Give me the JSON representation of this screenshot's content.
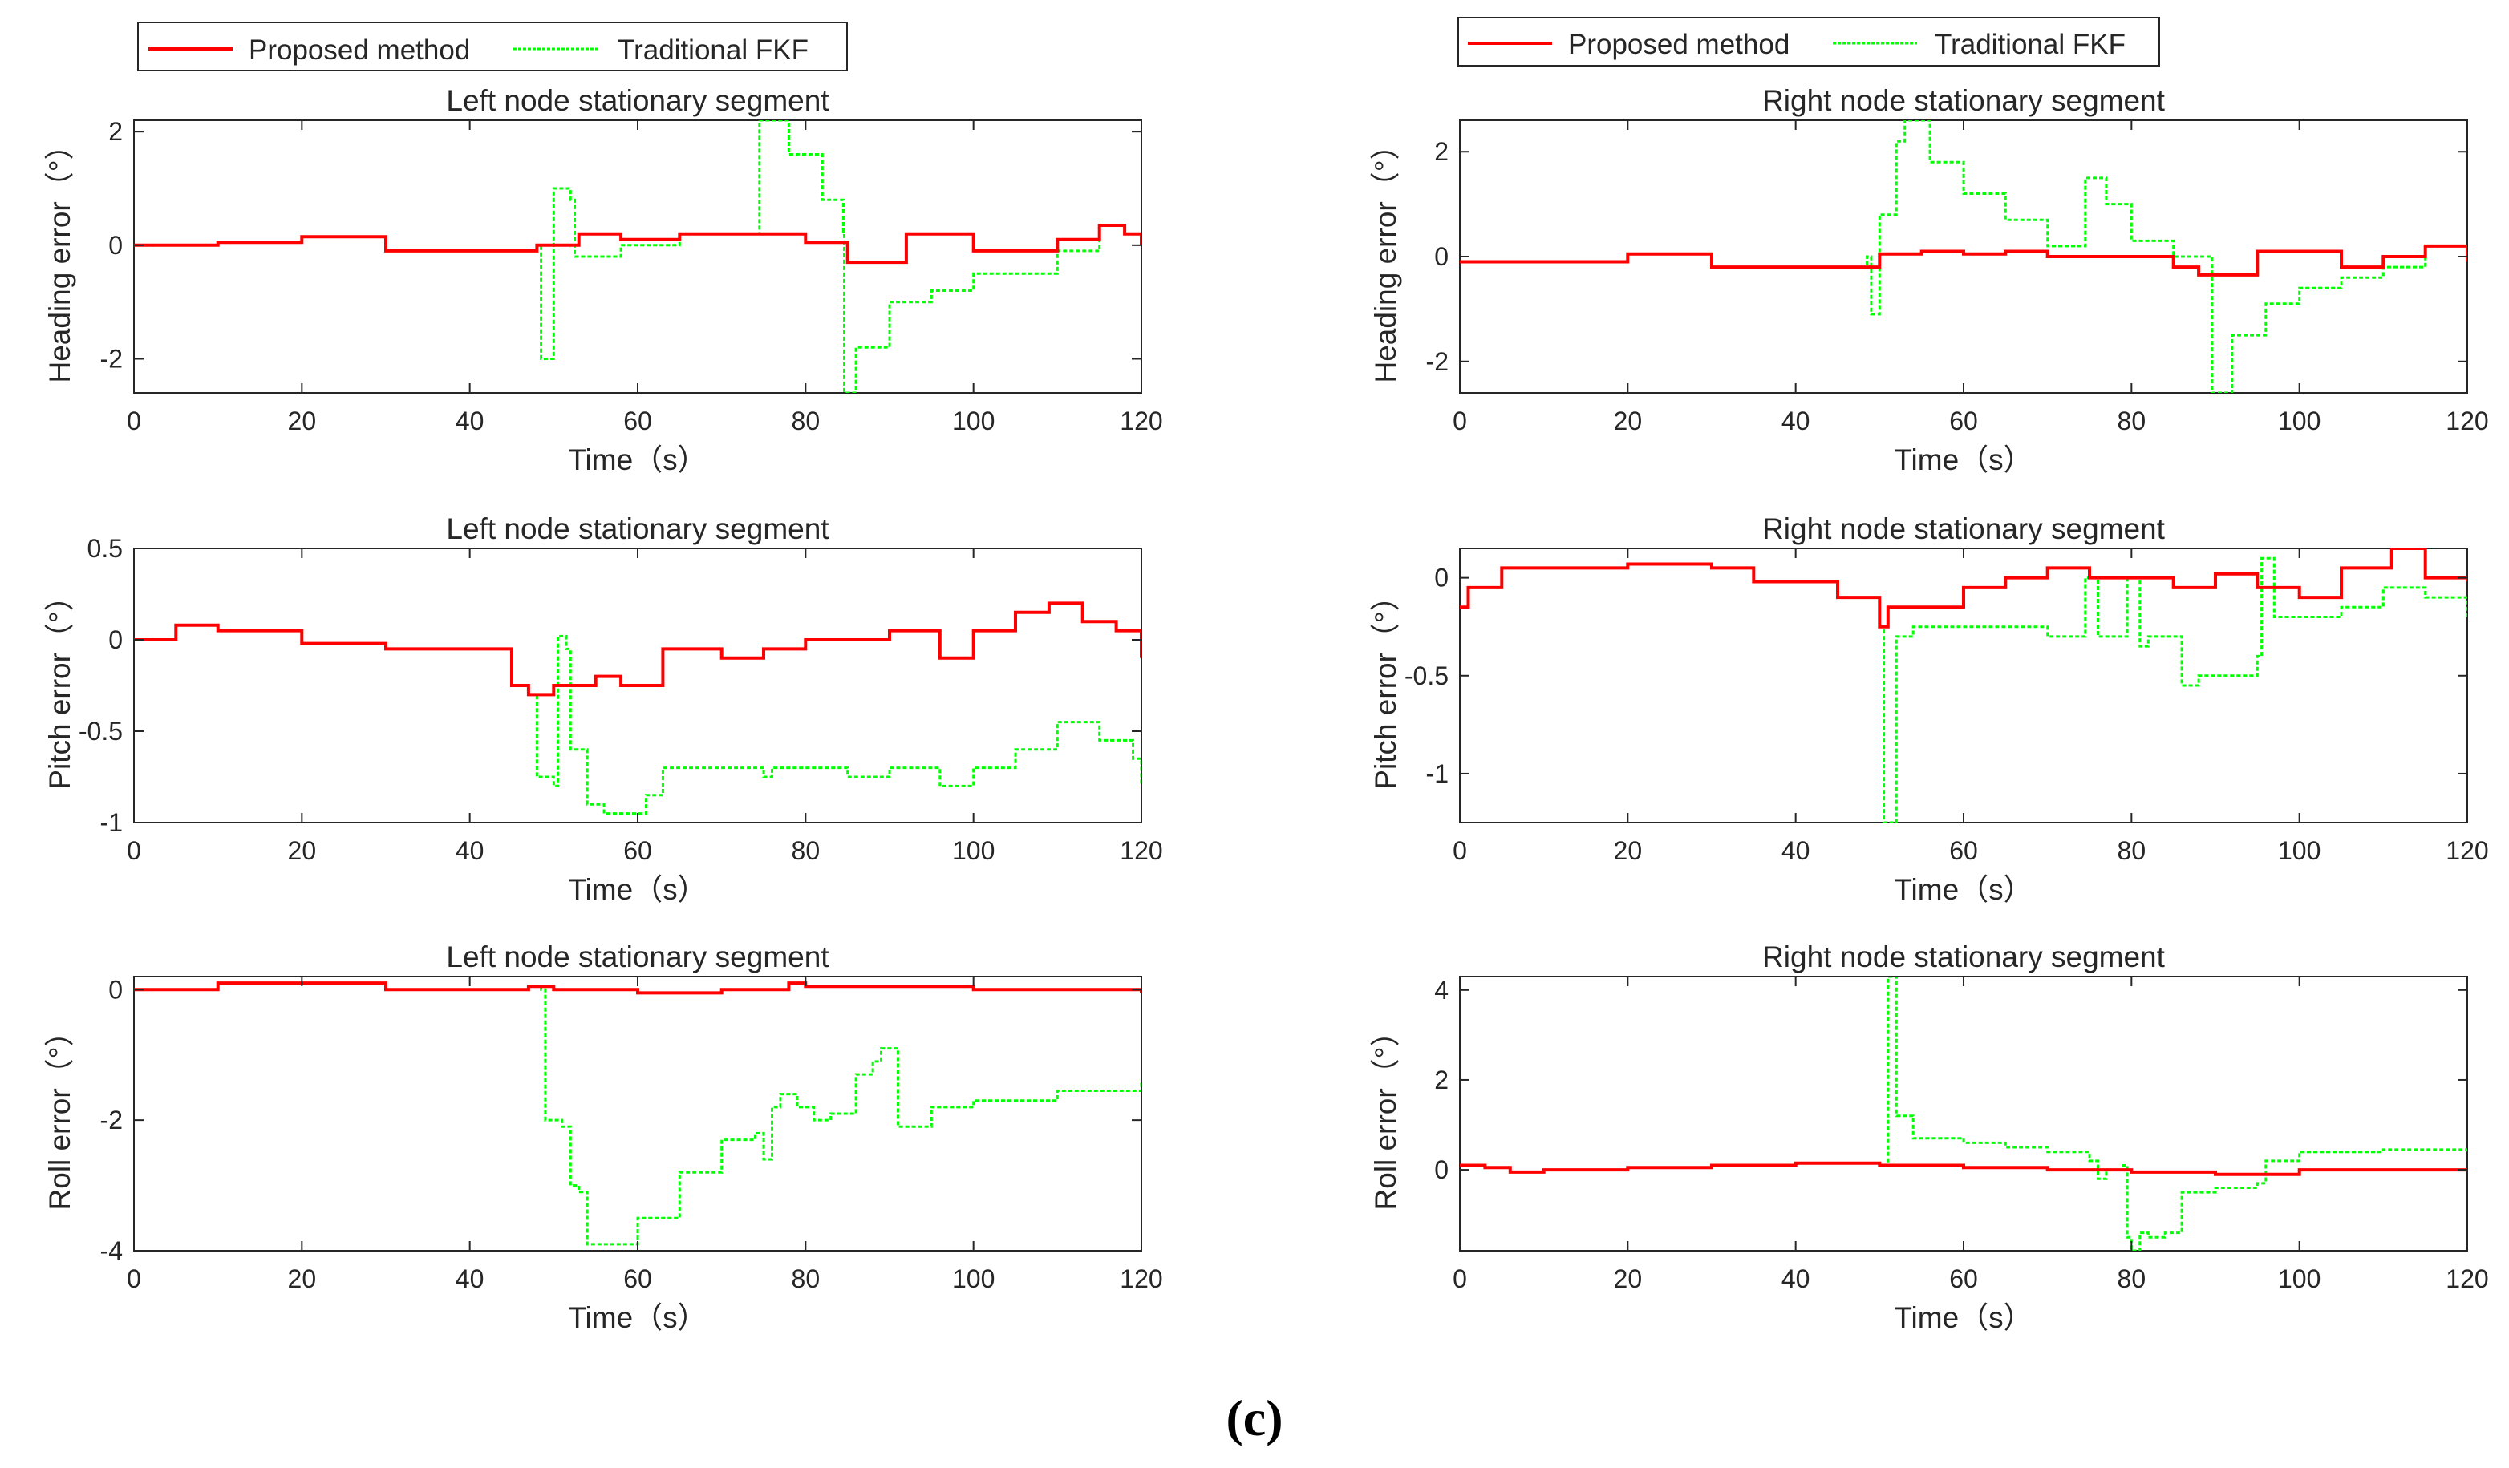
{
  "legend_labels": [
    "Proposed method",
    "Traditional FKF"
  ],
  "caption": "(c)",
  "colors": {
    "proposed": "#ff0000",
    "traditional": "#00ff00"
  },
  "chart_data": [
    {
      "id": "left-heading",
      "type": "line",
      "title": "Left node stationary segment",
      "xlabel": "Time（s）",
      "ylabel": "Heading error（°）",
      "xlim": [
        0,
        120
      ],
      "ylim": [
        -2.6,
        2.2
      ],
      "xticks": [
        0,
        20,
        40,
        60,
        80,
        100,
        120
      ],
      "yticks": [
        -2,
        0,
        2
      ],
      "series": [
        {
          "name": "Proposed method",
          "x": [
            0,
            10,
            20,
            30,
            40,
            48,
            53,
            58,
            65,
            75,
            80,
            85,
            92,
            100,
            110,
            115,
            118,
            120
          ],
          "y": [
            0,
            0.05,
            0.15,
            -0.1,
            -0.1,
            0,
            0.2,
            0.1,
            0.2,
            0.2,
            0.05,
            -0.3,
            0.2,
            -0.1,
            0.1,
            0.35,
            0.2,
            0
          ]
        },
        {
          "name": "Traditional FKF",
          "x": [
            0,
            10,
            20,
            30,
            40,
            48,
            48.5,
            49.5,
            50,
            51,
            52,
            52.5,
            58,
            65,
            74,
            74.5,
            78,
            82,
            84.5,
            84.6,
            86,
            90,
            95,
            100,
            110,
            115,
            118,
            120
          ],
          "y": [
            0,
            0.05,
            0.15,
            -0.1,
            -0.1,
            0,
            -2.0,
            -2.0,
            1.0,
            1.0,
            0.8,
            -0.2,
            0,
            0.2,
            0.2,
            2.2,
            1.6,
            0.8,
            0.2,
            -2.6,
            -1.8,
            -1.0,
            -0.8,
            -0.5,
            -0.1,
            0.35,
            0.2,
            0
          ]
        }
      ]
    },
    {
      "id": "right-heading",
      "type": "line",
      "title": "Right node stationary segment",
      "xlabel": "Time（s）",
      "ylabel": "Heading error（°）",
      "xlim": [
        0,
        120
      ],
      "ylim": [
        -2.6,
        2.6
      ],
      "xticks": [
        0,
        20,
        40,
        60,
        80,
        100,
        120
      ],
      "yticks": [
        -2,
        0,
        2
      ],
      "series": [
        {
          "name": "Proposed method",
          "x": [
            0,
            10,
            20,
            30,
            40,
            50,
            55,
            60,
            65,
            70,
            80,
            85,
            88,
            95,
            105,
            110,
            115,
            120
          ],
          "y": [
            -0.1,
            -0.1,
            0.05,
            -0.2,
            -0.2,
            0.05,
            0.1,
            0.05,
            0.1,
            0,
            0,
            -0.2,
            -0.35,
            0.1,
            -0.2,
            0,
            0.2,
            -0.1
          ]
        },
        {
          "name": "Traditional FKF",
          "x": [
            0,
            10,
            20,
            30,
            40,
            48.5,
            49,
            49.5,
            50,
            52,
            53,
            56,
            60,
            65,
            70,
            74,
            74.5,
            77,
            80,
            85,
            89.5,
            89.6,
            92,
            96,
            100,
            105,
            110,
            115,
            120
          ],
          "y": [
            -0.1,
            -0.1,
            0.05,
            -0.2,
            -0.2,
            0,
            -1.1,
            -1.1,
            0.8,
            2.2,
            2.6,
            1.8,
            1.2,
            0.7,
            0.2,
            0.2,
            1.5,
            1.0,
            0.3,
            0,
            0,
            -2.6,
            -1.5,
            -0.9,
            -0.6,
            -0.4,
            -0.2,
            0.2,
            -0.1
          ]
        }
      ]
    },
    {
      "id": "left-pitch",
      "type": "line",
      "title": "Left node stationary segment",
      "xlabel": "Time（s）",
      "ylabel": "Pitch error（°）",
      "xlim": [
        0,
        120
      ],
      "ylim": [
        -1,
        0.5
      ],
      "xticks": [
        0,
        20,
        40,
        60,
        80,
        100,
        120
      ],
      "yticks": [
        -1,
        -0.5,
        0,
        0.5
      ],
      "series": [
        {
          "name": "Proposed method",
          "x": [
            0,
            5,
            10,
            20,
            30,
            40,
            45,
            47,
            50,
            55,
            58,
            60,
            63,
            70,
            75,
            80,
            90,
            96,
            100,
            105,
            109,
            113,
            117,
            120
          ],
          "y": [
            0,
            0.08,
            0.05,
            -0.02,
            -0.05,
            -0.05,
            -0.25,
            -0.3,
            -0.25,
            -0.2,
            -0.25,
            -0.25,
            -0.05,
            -0.1,
            -0.05,
            0,
            0.05,
            -0.1,
            0.05,
            0.15,
            0.2,
            0.1,
            0.05,
            -0.1
          ]
        },
        {
          "name": "Traditional FKF",
          "x": [
            0,
            5,
            10,
            20,
            30,
            40,
            45,
            47,
            48,
            50,
            50.5,
            51.5,
            52,
            54,
            56,
            60,
            61,
            63,
            70,
            75,
            76,
            80,
            85,
            90,
            96,
            100,
            105,
            110,
            115,
            119,
            120
          ],
          "y": [
            0,
            0.08,
            0.05,
            -0.02,
            -0.05,
            -0.05,
            -0.25,
            -0.3,
            -0.75,
            -0.8,
            0.02,
            -0.05,
            -0.6,
            -0.9,
            -0.95,
            -0.95,
            -0.85,
            -0.7,
            -0.7,
            -0.75,
            -0.7,
            -0.7,
            -0.75,
            -0.7,
            -0.8,
            -0.7,
            -0.6,
            -0.45,
            -0.55,
            -0.65,
            -0.8
          ]
        }
      ]
    },
    {
      "id": "right-pitch",
      "type": "line",
      "title": "Right node stationary segment",
      "xlabel": "Time（s）",
      "ylabel": "Pitch error（°）",
      "xlim": [
        0,
        120
      ],
      "ylim": [
        -1.25,
        0.15
      ],
      "xticks": [
        0,
        20,
        40,
        60,
        80,
        100,
        120
      ],
      "yticks": [
        -1,
        -0.5,
        0
      ],
      "series": [
        {
          "name": "Proposed method",
          "x": [
            0,
            1,
            5,
            10,
            17,
            20,
            25,
            30,
            35,
            40,
            45,
            50,
            51,
            55,
            60,
            65,
            70,
            75,
            80,
            85,
            90,
            95,
            100,
            105,
            111,
            115,
            120
          ],
          "y": [
            -0.15,
            -0.05,
            0.05,
            0.05,
            0.05,
            0.07,
            0.07,
            0.05,
            -0.02,
            -0.02,
            -0.1,
            -0.25,
            -0.15,
            -0.15,
            -0.05,
            0,
            0.05,
            0,
            0,
            -0.05,
            0.02,
            -0.05,
            -0.1,
            0.05,
            0.15,
            0,
            -0.02
          ]
        },
        {
          "name": "Traditional FKF",
          "x": [
            0,
            1,
            5,
            10,
            17,
            20,
            25,
            30,
            35,
            40,
            45,
            50,
            50.5,
            51.5,
            52,
            54,
            58,
            63,
            70,
            74,
            74.5,
            76,
            77,
            79,
            79.5,
            81,
            82,
            85,
            86,
            88,
            90,
            95,
            95.5,
            96.5,
            97,
            100,
            105,
            110,
            115,
            120
          ],
          "y": [
            -0.15,
            -0.05,
            0.05,
            0.05,
            0.05,
            0.07,
            0.07,
            0.05,
            -0.02,
            -0.02,
            -0.1,
            -0.25,
            -1.25,
            -1.25,
            -0.3,
            -0.25,
            -0.25,
            -0.25,
            -0.3,
            -0.3,
            0,
            -0.3,
            -0.3,
            -0.3,
            0,
            -0.35,
            -0.3,
            -0.3,
            -0.55,
            -0.5,
            -0.5,
            -0.4,
            0.1,
            0.1,
            -0.2,
            -0.2,
            -0.15,
            -0.05,
            -0.1,
            -0.2
          ]
        }
      ]
    },
    {
      "id": "left-roll",
      "type": "line",
      "title": "Left node stationary segment",
      "xlabel": "Time（s）",
      "ylabel": "Roll error（°）",
      "xlim": [
        0,
        120
      ],
      "ylim": [
        -4,
        0.2
      ],
      "xticks": [
        0,
        20,
        40,
        60,
        80,
        100,
        120
      ],
      "yticks": [
        -4,
        -2,
        0
      ],
      "series": [
        {
          "name": "Proposed method",
          "x": [
            0,
            10,
            20,
            30,
            40,
            47,
            50,
            60,
            70,
            78,
            80,
            90,
            100,
            110,
            120
          ],
          "y": [
            0,
            0.1,
            0.1,
            0,
            0,
            0.05,
            0,
            -0.05,
            0,
            0.1,
            0.05,
            0.05,
            0,
            0,
            -0.05
          ]
        },
        {
          "name": "Traditional FKF",
          "x": [
            0,
            10,
            20,
            30,
            40,
            47,
            48.5,
            49,
            51,
            52,
            53,
            54,
            56,
            60,
            65,
            70,
            74,
            75,
            76,
            77,
            79,
            81,
            83,
            85,
            86,
            88,
            89,
            90,
            91,
            95,
            100,
            110,
            120
          ],
          "y": [
            0,
            0.1,
            0.1,
            0,
            0,
            0.05,
            0,
            -2.0,
            -2.1,
            -3.0,
            -3.1,
            -3.9,
            -3.9,
            -3.5,
            -2.8,
            -2.3,
            -2.2,
            -2.6,
            -1.8,
            -1.6,
            -1.8,
            -2.0,
            -1.9,
            -1.9,
            -1.3,
            -1.1,
            -0.9,
            -0.9,
            -2.1,
            -1.8,
            -1.7,
            -1.55,
            -1.4
          ]
        }
      ]
    },
    {
      "id": "right-roll",
      "type": "line",
      "title": "Right node stationary segment",
      "xlabel": "Time（s）",
      "ylabel": "Roll error（°）",
      "xlim": [
        0,
        120
      ],
      "ylim": [
        -1.8,
        4.3
      ],
      "xticks": [
        0,
        20,
        40,
        60,
        80,
        100,
        120
      ],
      "yticks": [
        0,
        2,
        4
      ],
      "series": [
        {
          "name": "Proposed method",
          "x": [
            0,
            3,
            6,
            10,
            20,
            30,
            40,
            50,
            60,
            70,
            80,
            90,
            100,
            110,
            120
          ],
          "y": [
            0.1,
            0.05,
            -0.05,
            0,
            0.05,
            0.1,
            0.15,
            0.1,
            0.05,
            0,
            -0.05,
            -0.1,
            0,
            0,
            0
          ]
        },
        {
          "name": "Traditional FKF",
          "x": [
            0,
            3,
            6,
            10,
            20,
            30,
            40,
            50,
            50.5,
            51,
            52,
            54,
            60,
            65,
            70,
            75,
            76,
            77,
            79,
            79.5,
            80,
            81,
            82,
            84,
            86,
            90,
            95,
            96,
            100,
            110,
            120
          ],
          "y": [
            0.1,
            0.05,
            -0.05,
            0,
            0.05,
            0.1,
            0.15,
            0.1,
            0.1,
            4.3,
            1.2,
            0.7,
            0.6,
            0.5,
            0.4,
            0.2,
            -0.2,
            0,
            0.1,
            -1.5,
            -1.8,
            -1.4,
            -1.5,
            -1.4,
            -0.5,
            -0.4,
            -0.3,
            0.2,
            0.4,
            0.45,
            0.4
          ]
        }
      ]
    }
  ]
}
